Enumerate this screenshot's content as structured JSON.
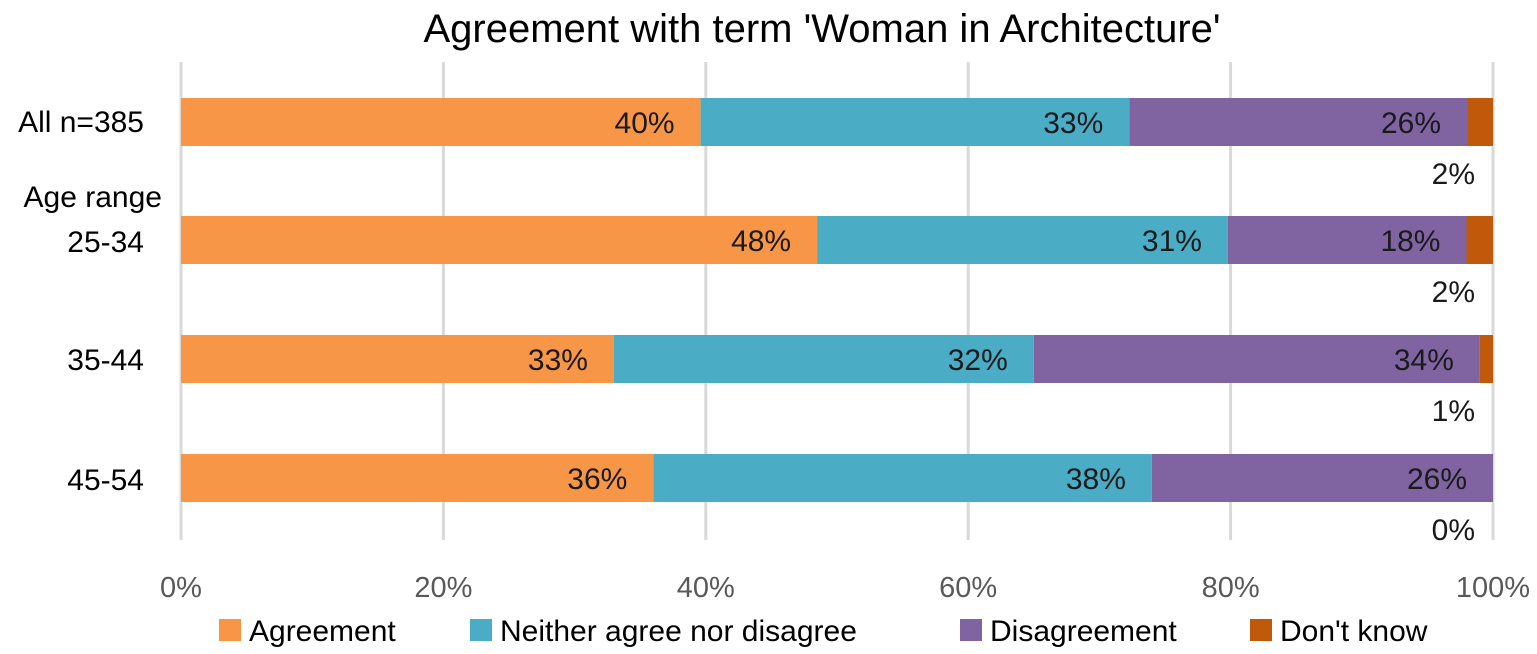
{
  "chart_data": {
    "type": "bar",
    "orientation": "horizontal",
    "stacked": "percent",
    "title": "Agreement with term 'Woman in Architecture'",
    "categories": [
      "All n=385",
      "25-34",
      "35-44",
      "45-54"
    ],
    "category_group_label": "Age range",
    "series": [
      {
        "name": "Agreement",
        "color": "#F79646",
        "values": [
          40,
          48,
          33,
          36
        ]
      },
      {
        "name": "Neither agree nor disagree",
        "color": "#4BACC6",
        "values": [
          33,
          31,
          32,
          38
        ]
      },
      {
        "name": "Disagreement",
        "color": "#8064A2",
        "values": [
          26,
          18,
          34,
          26
        ]
      },
      {
        "name": "Don't know",
        "color": "#C0590A",
        "values": [
          2,
          2,
          1,
          0
        ]
      }
    ],
    "bar_totals": [
      101,
      99,
      100,
      100
    ],
    "xlim": [
      0,
      100
    ],
    "xticks": [
      "0%",
      "20%",
      "40%",
      "60%",
      "80%",
      "100%"
    ],
    "grid": true,
    "legend_position": "bottom"
  }
}
